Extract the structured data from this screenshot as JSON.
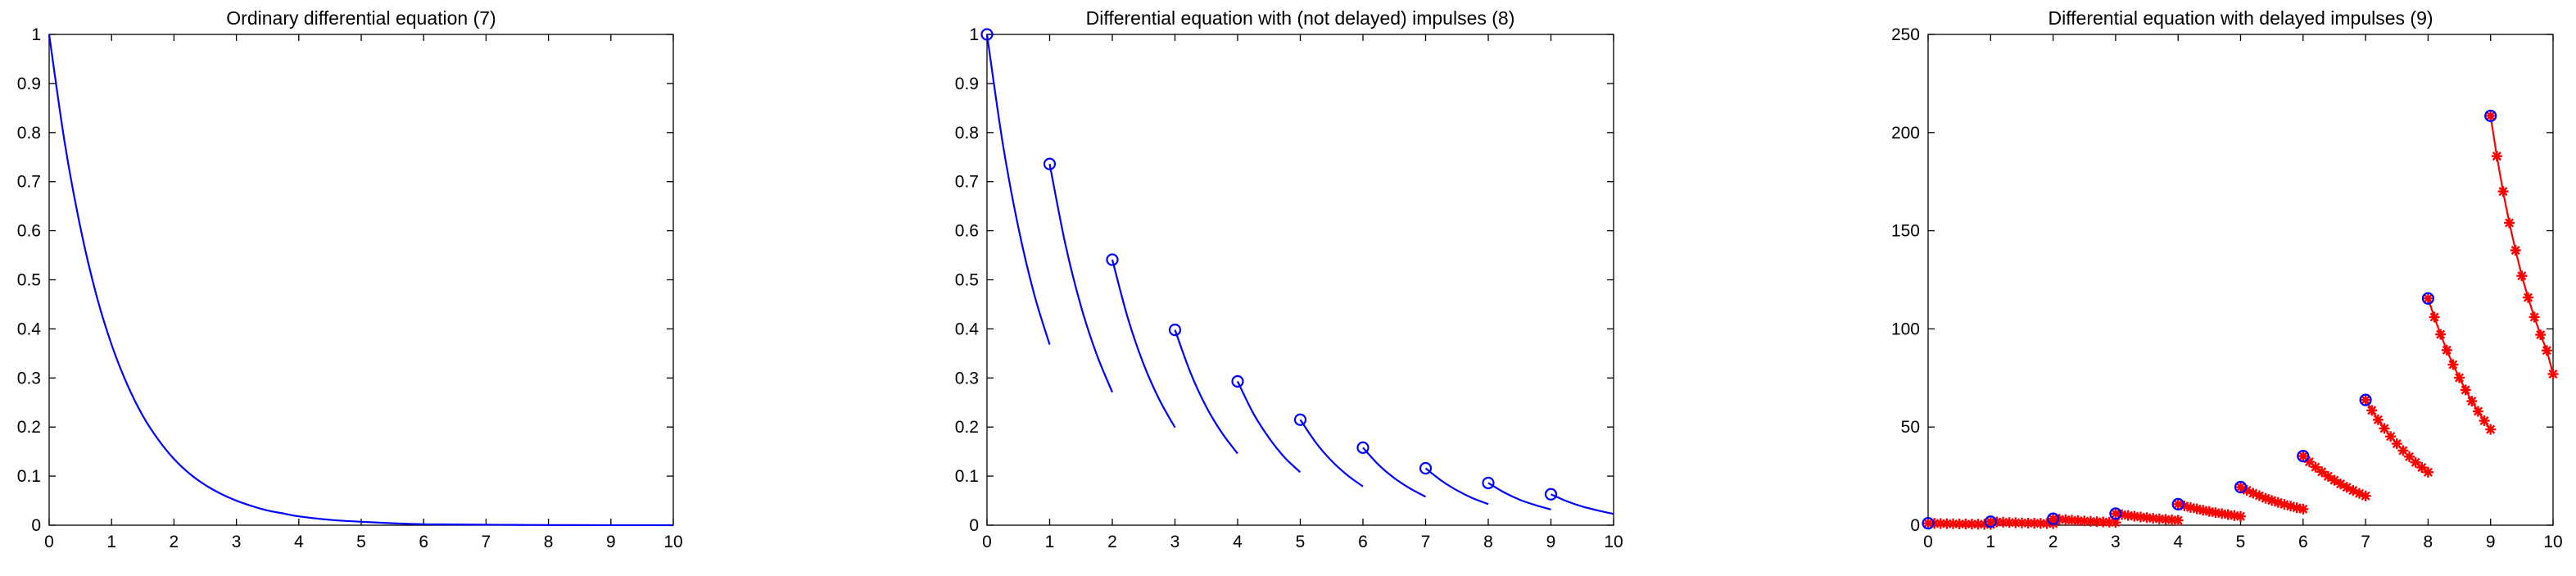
{
  "colors": {
    "series_blue": "#0000ff",
    "series_red": "#ff0000",
    "axes": "#000000",
    "background": "#ffffff"
  },
  "chart_data": [
    {
      "type": "line",
      "title": "Ordinary differential equation (7)",
      "xlabel": "",
      "ylabel": "",
      "xlim": [
        0,
        10
      ],
      "ylim": [
        0,
        1
      ],
      "xticks": [
        0,
        1,
        2,
        3,
        4,
        5,
        6,
        7,
        8,
        9,
        10
      ],
      "yticks": [
        0,
        0.1,
        0.2,
        0.3,
        0.4,
        0.5,
        0.6,
        0.7,
        0.8,
        0.9,
        1
      ],
      "grid": false,
      "series": [
        {
          "kind": "line",
          "color": "#0000ff",
          "x": [
            0,
            0.25,
            0.5,
            0.75,
            1,
            1.25,
            1.5,
            1.75,
            2,
            2.25,
            2.5,
            2.75,
            3,
            3.25,
            3.5,
            3.75,
            4,
            4.5,
            5,
            5.5,
            6,
            6.5,
            7,
            7.5,
            8,
            8.5,
            9,
            9.5,
            10
          ],
          "y": [
            1,
            0.779,
            0.607,
            0.472,
            0.368,
            0.287,
            0.223,
            0.174,
            0.135,
            0.105,
            0.082,
            0.064,
            0.05,
            0.039,
            0.03,
            0.024,
            0.018,
            0.011,
            0.007,
            0.004,
            0.002,
            0.0015,
            0.0009,
            0.0006,
            0.0003,
            0.0002,
            0.0001,
            0.0001,
            0
          ]
        }
      ]
    },
    {
      "type": "line",
      "title": "Differential equation with (not delayed) impulses (8)",
      "xlabel": "",
      "ylabel": "",
      "xlim": [
        0,
        10
      ],
      "ylim": [
        0,
        1
      ],
      "xticks": [
        0,
        1,
        2,
        3,
        4,
        5,
        6,
        7,
        8,
        9,
        10
      ],
      "yticks": [
        0,
        0.1,
        0.2,
        0.3,
        0.4,
        0.5,
        0.6,
        0.7,
        0.8,
        0.9,
        1
      ],
      "grid": false,
      "series": [
        {
          "kind": "line",
          "color": "#0000ff",
          "x": [
            0,
            0.25,
            0.5,
            0.75,
            1
          ],
          "y": [
            1,
            0.779,
            0.607,
            0.472,
            0.368
          ]
        },
        {
          "kind": "line",
          "color": "#0000ff",
          "x": [
            1,
            1.25,
            1.5,
            1.75,
            2
          ],
          "y": [
            0.736,
            0.573,
            0.446,
            0.348,
            0.271
          ]
        },
        {
          "kind": "line",
          "color": "#0000ff",
          "x": [
            2,
            2.25,
            2.5,
            2.75,
            3
          ],
          "y": [
            0.541,
            0.421,
            0.328,
            0.256,
            0.199
          ]
        },
        {
          "kind": "line",
          "color": "#0000ff",
          "x": [
            3,
            3.25,
            3.5,
            3.75,
            4
          ],
          "y": [
            0.398,
            0.31,
            0.241,
            0.188,
            0.146
          ]
        },
        {
          "kind": "line",
          "color": "#0000ff",
          "x": [
            4,
            4.25,
            4.5,
            4.75,
            5
          ],
          "y": [
            0.293,
            0.228,
            0.178,
            0.138,
            0.108
          ]
        },
        {
          "kind": "line",
          "color": "#0000ff",
          "x": [
            5,
            5.25,
            5.5,
            5.75,
            6
          ],
          "y": [
            0.215,
            0.168,
            0.131,
            0.102,
            0.079
          ]
        },
        {
          "kind": "line",
          "color": "#0000ff",
          "x": [
            6,
            6.25,
            6.5,
            6.75,
            7
          ],
          "y": [
            0.158,
            0.123,
            0.096,
            0.075,
            0.058
          ]
        },
        {
          "kind": "line",
          "color": "#0000ff",
          "x": [
            7,
            7.25,
            7.5,
            7.75,
            8
          ],
          "y": [
            0.116,
            0.091,
            0.071,
            0.055,
            0.043
          ]
        },
        {
          "kind": "line",
          "color": "#0000ff",
          "x": [
            8,
            8.25,
            8.5,
            8.75,
            9
          ],
          "y": [
            0.086,
            0.067,
            0.052,
            0.041,
            0.032
          ]
        },
        {
          "kind": "line",
          "color": "#0000ff",
          "x": [
            9,
            9.25,
            9.5,
            9.75,
            10
          ],
          "y": [
            0.063,
            0.049,
            0.038,
            0.03,
            0.023
          ]
        },
        {
          "kind": "markers",
          "marker": "circle",
          "color": "#0000ff",
          "x": [
            0,
            1,
            2,
            3,
            4,
            5,
            6,
            7,
            8,
            9
          ],
          "y": [
            1,
            0.736,
            0.541,
            0.398,
            0.293,
            0.215,
            0.158,
            0.116,
            0.086,
            0.063
          ]
        }
      ]
    },
    {
      "type": "line",
      "title": "Differential equation with delayed impulses (9)",
      "xlabel": "",
      "ylabel": "",
      "xlim": [
        0,
        10
      ],
      "ylim": [
        0,
        250
      ],
      "xticks": [
        0,
        1,
        2,
        3,
        4,
        5,
        6,
        7,
        8,
        9,
        10
      ],
      "yticks": [
        0,
        50,
        100,
        150,
        200,
        250
      ],
      "grid": false,
      "series": [
        {
          "kind": "line-star",
          "color": "#ff0000",
          "x": [
            0,
            0.1,
            0.2,
            0.3,
            0.4,
            0.5,
            0.6,
            0.7,
            0.8,
            0.9,
            1
          ],
          "y": [
            1,
            0.92,
            0.84,
            0.77,
            0.71,
            0.66,
            0.6,
            0.56,
            0.51,
            0.47,
            0.43
          ]
        },
        {
          "kind": "line-star",
          "color": "#ff0000",
          "x": [
            1,
            1.1,
            1.2,
            1.3,
            1.4,
            1.5,
            1.6,
            1.7,
            1.8,
            1.9,
            2
          ],
          "y": [
            1.8,
            1.65,
            1.52,
            1.39,
            1.28,
            1.17,
            1.08,
            0.99,
            0.91,
            0.83,
            0.77
          ]
        },
        {
          "kind": "line-star",
          "color": "#ff0000",
          "x": [
            2,
            2.1,
            2.2,
            2.3,
            2.4,
            2.5,
            2.6,
            2.7,
            2.8,
            2.9,
            3
          ],
          "y": [
            3.3,
            3.03,
            2.78,
            2.55,
            2.34,
            2.15,
            1.97,
            1.81,
            1.66,
            1.52,
            1.4
          ]
        },
        {
          "kind": "line-star",
          "color": "#ff0000",
          "x": [
            3,
            3.1,
            3.2,
            3.3,
            3.4,
            3.5,
            3.6,
            3.7,
            3.8,
            3.9,
            4
          ],
          "y": [
            5.9,
            5.41,
            4.97,
            4.56,
            4.18,
            3.84,
            3.52,
            3.23,
            2.96,
            2.72,
            2.5
          ]
        },
        {
          "kind": "line-star",
          "color": "#ff0000",
          "x": [
            4,
            4.1,
            4.2,
            4.3,
            4.4,
            4.5,
            4.6,
            4.7,
            4.8,
            4.9,
            5
          ],
          "y": [
            10.7,
            9.8,
            9,
            8.3,
            7.6,
            7,
            6.4,
            5.9,
            5.4,
            4.9,
            4.5
          ]
        },
        {
          "kind": "line-star",
          "color": "#ff0000",
          "x": [
            5,
            5.1,
            5.2,
            5.3,
            5.4,
            5.5,
            5.6,
            5.7,
            5.8,
            5.9,
            6
          ],
          "y": [
            19.4,
            17.8,
            16.3,
            15,
            13.7,
            12.6,
            11.6,
            10.6,
            9.7,
            8.9,
            8.2
          ]
        },
        {
          "kind": "line-star",
          "color": "#ff0000",
          "x": [
            6,
            6.1,
            6.2,
            6.3,
            6.4,
            6.5,
            6.6,
            6.7,
            6.8,
            6.9,
            7
          ],
          "y": [
            35.2,
            32.3,
            29.6,
            27.2,
            24.9,
            22.9,
            21,
            19.3,
            17.7,
            16.2,
            14.9
          ]
        },
        {
          "kind": "line-star",
          "color": "#ff0000",
          "x": [
            7,
            7.1,
            7.2,
            7.3,
            7.4,
            7.5,
            7.6,
            7.7,
            7.8,
            7.9,
            8
          ],
          "y": [
            63.8,
            58.5,
            53.7,
            49.3,
            45.2,
            41.5,
            38,
            34.9,
            32,
            29.4,
            27
          ]
        },
        {
          "kind": "line-star",
          "color": "#ff0000",
          "x": [
            8,
            8.1,
            8.2,
            8.3,
            8.4,
            8.5,
            8.6,
            8.7,
            8.8,
            8.9,
            9
          ],
          "y": [
            115.5,
            106,
            97.2,
            89.2,
            81.8,
            75.1,
            68.9,
            63.2,
            58,
            53.2,
            48.8
          ]
        },
        {
          "kind": "line-star",
          "color": "#ff0000",
          "x": [
            9,
            9.1,
            9.2,
            9.3,
            9.4,
            9.5,
            9.6,
            9.7,
            9.8,
            9.9,
            10
          ],
          "y": [
            208.5,
            188,
            170,
            154,
            140,
            127,
            116,
            106,
            97,
            89,
            77
          ]
        },
        {
          "kind": "markers",
          "marker": "circle",
          "color": "#0000ff",
          "x": [
            0,
            1,
            2,
            3,
            4,
            5,
            6,
            7,
            8,
            9
          ],
          "y": [
            1,
            1.8,
            3.3,
            5.9,
            10.7,
            19.4,
            35.2,
            63.8,
            115.5,
            208.5
          ]
        }
      ]
    }
  ]
}
